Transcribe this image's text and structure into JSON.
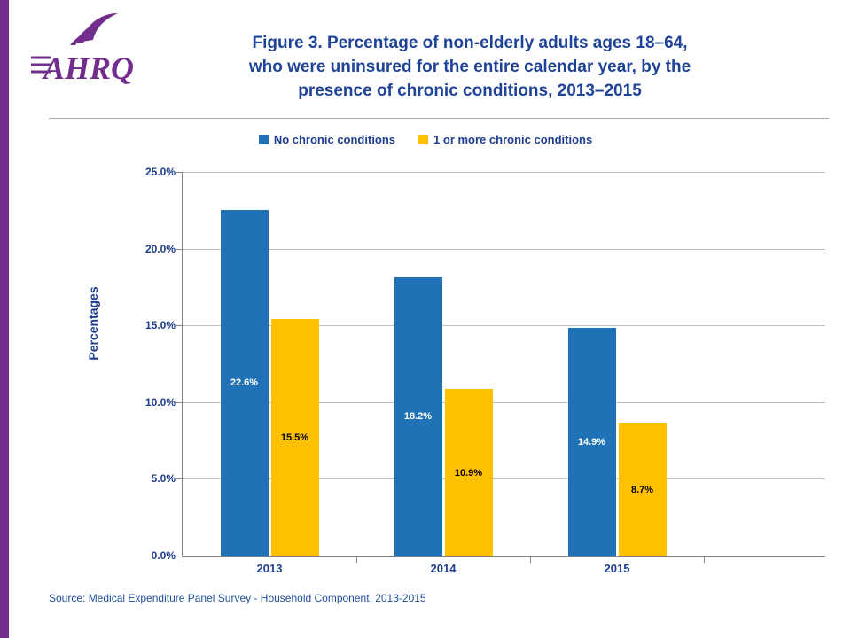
{
  "page": {
    "logo_text": "AHRQ",
    "title_lines": [
      "Figure 3. Percentage of non-elderly adults ages 18–64,",
      "who were uninsured for the entire calendar year, by the",
      "presence of chronic conditions, 2013–2015"
    ],
    "source": "Source:  Medical Expenditure Panel Survey  - Household Component, 2013-2015",
    "colors": {
      "purple": "#712E8D",
      "title_text": "#1F4397",
      "chart_text": "#1F3E8F",
      "source_text": "#1F4E9C",
      "grid_line": "#BFBFBF",
      "axis_line": "#808080",
      "divider": "#A6A6A6"
    }
  },
  "chart_data": {
    "type": "bar",
    "title": "Figure 3. Percentage of non-elderly adults ages 18–64, who were uninsured for the entire calendar year, by the presence of chronic conditions, 2013–2015",
    "categories": [
      "2013",
      "2014",
      "2015"
    ],
    "series": [
      {
        "name": "No chronic conditions",
        "color": "#1F72B5",
        "label_color": "#FFFFFF",
        "values": [
          22.6,
          18.2,
          14.9
        ]
      },
      {
        "name": "1 or more chronic conditions",
        "color": "#FFC000",
        "label_color": "#000000",
        "values": [
          15.5,
          10.9,
          8.7
        ]
      }
    ],
    "xlabel": "",
    "ylabel": "Percentages",
    "ylim": [
      0,
      25
    ],
    "ytick_step": 5,
    "yticks": [
      "0.0%",
      "5.0%",
      "10.0%",
      "15.0%",
      "20.0%",
      "25.0%"
    ],
    "grid": true,
    "legend_position": "top",
    "value_suffix": "%"
  }
}
